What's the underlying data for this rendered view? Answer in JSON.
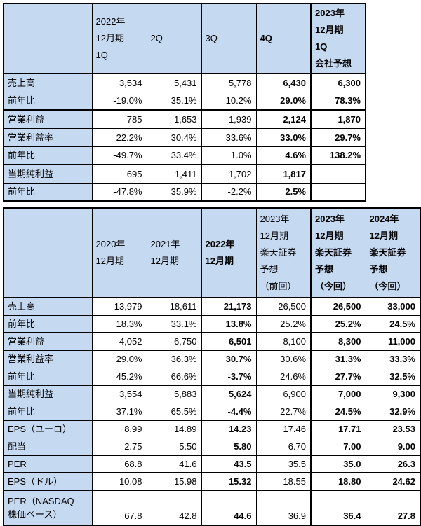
{
  "colors": {
    "header_bg": "#c5d9f1",
    "border": "#000000",
    "text": "#000000",
    "cell_bg": "#ffffff"
  },
  "chart_data": [
    {
      "type": "table",
      "title": "",
      "headers": [
        "",
        "2022年\n12月期\n1Q",
        "2Q",
        "3Q",
        "4Q",
        "2023年\n12月期\n1Q\n会社予想"
      ],
      "bold_value_columns": [
        3,
        4
      ],
      "rows": [
        {
          "label": "売上高",
          "values": [
            "3,534",
            "5,431",
            "5,778",
            "6,430",
            "6,300"
          ]
        },
        {
          "label": "前年比",
          "values": [
            "-19.0%",
            "35.1%",
            "10.2%",
            "29.0%",
            "78.3%"
          ]
        },
        {
          "label": "営業利益",
          "values": [
            "785",
            "1,653",
            "1,939",
            "2,124",
            "1,870"
          ]
        },
        {
          "label": "営業利益率",
          "values": [
            "22.2%",
            "30.4%",
            "33.6%",
            "33.0%",
            "29.7%"
          ]
        },
        {
          "label": "前年比",
          "values": [
            "-49.7%",
            "33.4%",
            "1.0%",
            "4.6%",
            "138.2%"
          ]
        },
        {
          "label": "当期純利益",
          "values": [
            "695",
            "1,411",
            "1,702",
            "1,817",
            ""
          ]
        },
        {
          "label": "前年比",
          "values": [
            "-47.8%",
            "35.9%",
            "-2.2%",
            "2.5%",
            ""
          ]
        }
      ]
    },
    {
      "type": "table",
      "title": "",
      "headers": [
        "",
        "2020年\n12月期",
        "2021年\n12月期",
        "2022年\n12月期",
        "2023年\n12月期\n楽天証券\n予想\n（前回）",
        "2023年\n12月期\n楽天証券\n予想\n（今回）",
        "2024年\n12月期\n楽天証券\n予想\n（今回）"
      ],
      "bold_value_columns": [
        2,
        4,
        5
      ],
      "rows": [
        {
          "label": "売上高",
          "values": [
            "13,979",
            "18,611",
            "21,173",
            "26,500",
            "26,500",
            "33,000"
          ]
        },
        {
          "label": "前年比",
          "values": [
            "18.3%",
            "33.1%",
            "13.8%",
            "25.2%",
            "25.2%",
            "24.5%"
          ]
        },
        {
          "label": "営業利益",
          "values": [
            "4,052",
            "6,750",
            "6,501",
            "8,100",
            "8,300",
            "11,000"
          ]
        },
        {
          "label": "営業利益率",
          "values": [
            "29.0%",
            "36.3%",
            "30.7%",
            "30.6%",
            "31.3%",
            "33.3%"
          ]
        },
        {
          "label": "前年比",
          "values": [
            "45.2%",
            "66.6%",
            "-3.7%",
            "24.6%",
            "27.7%",
            "32.5%"
          ]
        },
        {
          "label": "当期純利益",
          "values": [
            "3,554",
            "5,883",
            "5,624",
            "6,900",
            "7,000",
            "9,300"
          ]
        },
        {
          "label": "前年比",
          "values": [
            "37.1%",
            "65.5%",
            "-4.4%",
            "22.7%",
            "24.5%",
            "32.9%"
          ]
        },
        {
          "label": "EPS（ユーロ）",
          "values": [
            "8.99",
            "14.89",
            "14.23",
            "17.46",
            "17.71",
            "23.53"
          ]
        },
        {
          "label": "配当",
          "values": [
            "2.75",
            "5.50",
            "5.80",
            "6.70",
            "7.00",
            "9.00"
          ]
        },
        {
          "label": "PER",
          "values": [
            "68.8",
            "41.6",
            "43.5",
            "35.5",
            "35.0",
            "26.3"
          ]
        },
        {
          "label": "EPS（ドル）",
          "values": [
            "10.08",
            "15.98",
            "15.32",
            "18.55",
            "18.80",
            "24.62"
          ]
        },
        {
          "label": "PER（NASDAQ\n株価ベース）",
          "values": [
            "67.8",
            "42.8",
            "44.6",
            "36.9",
            "36.4",
            "27.8"
          ]
        }
      ]
    }
  ]
}
